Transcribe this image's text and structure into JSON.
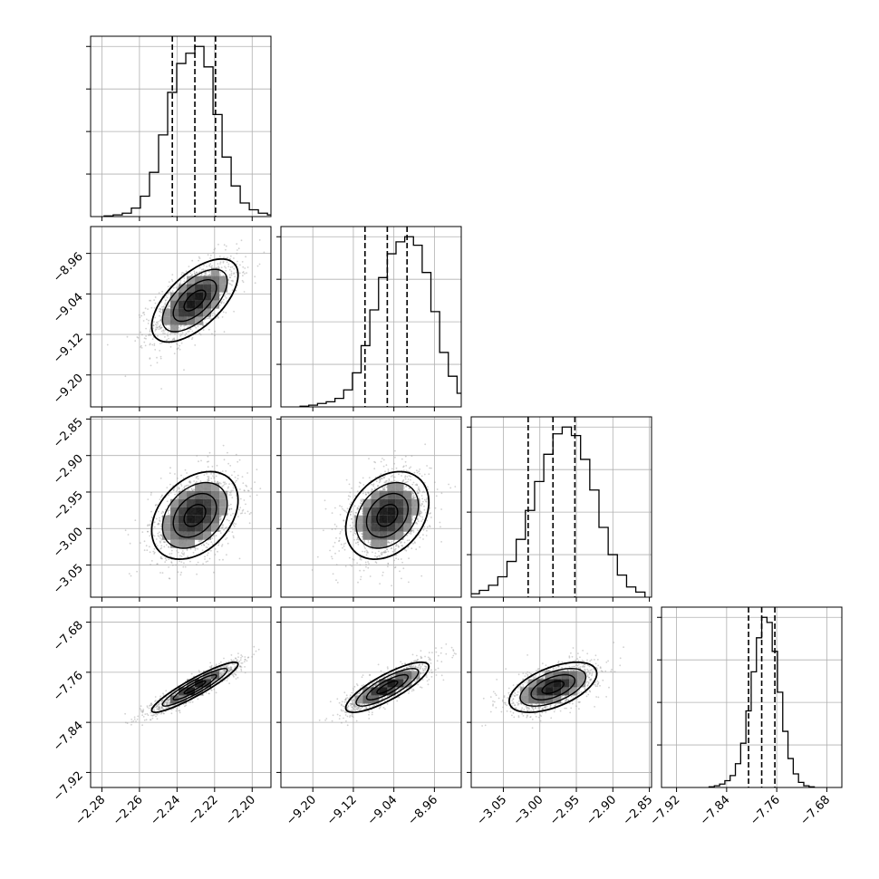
{
  "chart_data": {
    "type": "corner",
    "grid": true,
    "colors": {
      "hist": "#000000",
      "grid": "#b0b0b0",
      "points": "#9a9a9a",
      "contour": "#000000",
      "quantile": "#000000"
    },
    "parameters": [
      {
        "id": "p0",
        "range": [
          -2.286,
          -2.19
        ],
        "ticks": [
          -2.28,
          -2.26,
          -2.24,
          -2.22,
          -2.2
        ],
        "tick_labels": [
          "−2.28",
          "−2.26",
          "−2.24",
          "−2.22",
          "−2.20"
        ],
        "mean": -2.2305,
        "sigma": 0.0115,
        "quantiles": [
          -2.2425,
          -2.2305,
          -2.2195
        ],
        "hist_bins": [
          0.004,
          0.01,
          0.02,
          0.05,
          0.12,
          0.26,
          0.48,
          0.73,
          0.9,
          0.96,
          1.0,
          0.88,
          0.6,
          0.35,
          0.18,
          0.08,
          0.04,
          0.02,
          0.01,
          0.005
        ]
      },
      {
        "id": "p1",
        "range": [
          -9.263,
          -8.907
        ],
        "ticks": [
          -9.2,
          -9.12,
          -9.04,
          -8.96
        ],
        "tick_labels": [
          "−9.20",
          "−9.12",
          "−9.04",
          "−8.96"
        ],
        "mean": -9.053,
        "sigma": 0.041,
        "quantiles": [
          -9.097,
          -9.053,
          -9.014
        ],
        "hist_bins": [
          0.004,
          0.01,
          0.02,
          0.03,
          0.05,
          0.1,
          0.2,
          0.36,
          0.57,
          0.76,
          0.9,
          0.97,
          1.0,
          0.95,
          0.79,
          0.56,
          0.32,
          0.18,
          0.08,
          0.03
        ]
      },
      {
        "id": "p2",
        "range": [
          -3.094,
          -2.847
        ],
        "ticks": [
          -3.05,
          -3.0,
          -2.95,
          -2.9,
          -2.85
        ],
        "tick_labels": [
          "−3.05",
          "−3.00",
          "−2.95",
          "−2.90",
          "−2.85"
        ],
        "mean": -2.982,
        "sigma": 0.03,
        "quantiles": [
          -3.016,
          -2.982,
          -2.952
        ],
        "hist_bins": [
          0.01,
          0.02,
          0.04,
          0.07,
          0.12,
          0.21,
          0.34,
          0.51,
          0.68,
          0.84,
          0.96,
          1.0,
          0.95,
          0.81,
          0.63,
          0.41,
          0.25,
          0.13,
          0.06,
          0.03
        ]
      },
      {
        "id": "p3",
        "range": [
          -7.944,
          -7.656
        ],
        "ticks": [
          -7.92,
          -7.84,
          -7.76,
          -7.68
        ],
        "tick_labels": [
          "−7.92",
          "−7.84",
          "−7.76",
          "−7.68"
        ],
        "mean": -7.784,
        "sigma": 0.02,
        "quantiles": [
          -7.805,
          -7.784,
          -7.763
        ],
        "hist_bins": [
          0.004,
          0.01,
          0.02,
          0.04,
          0.07,
          0.14,
          0.26,
          0.45,
          0.68,
          0.88,
          1.0,
          0.97,
          0.8,
          0.56,
          0.33,
          0.17,
          0.08,
          0.03,
          0.01,
          0.004
        ]
      }
    ],
    "correlations": {
      "1,0": 0.62,
      "2,0": 0.35,
      "2,1": 0.3,
      "3,0": 0.92,
      "3,1": 0.82,
      "3,2": 0.55
    },
    "contour_levels": [
      0.5,
      1.0,
      1.5,
      2.0
    ]
  }
}
